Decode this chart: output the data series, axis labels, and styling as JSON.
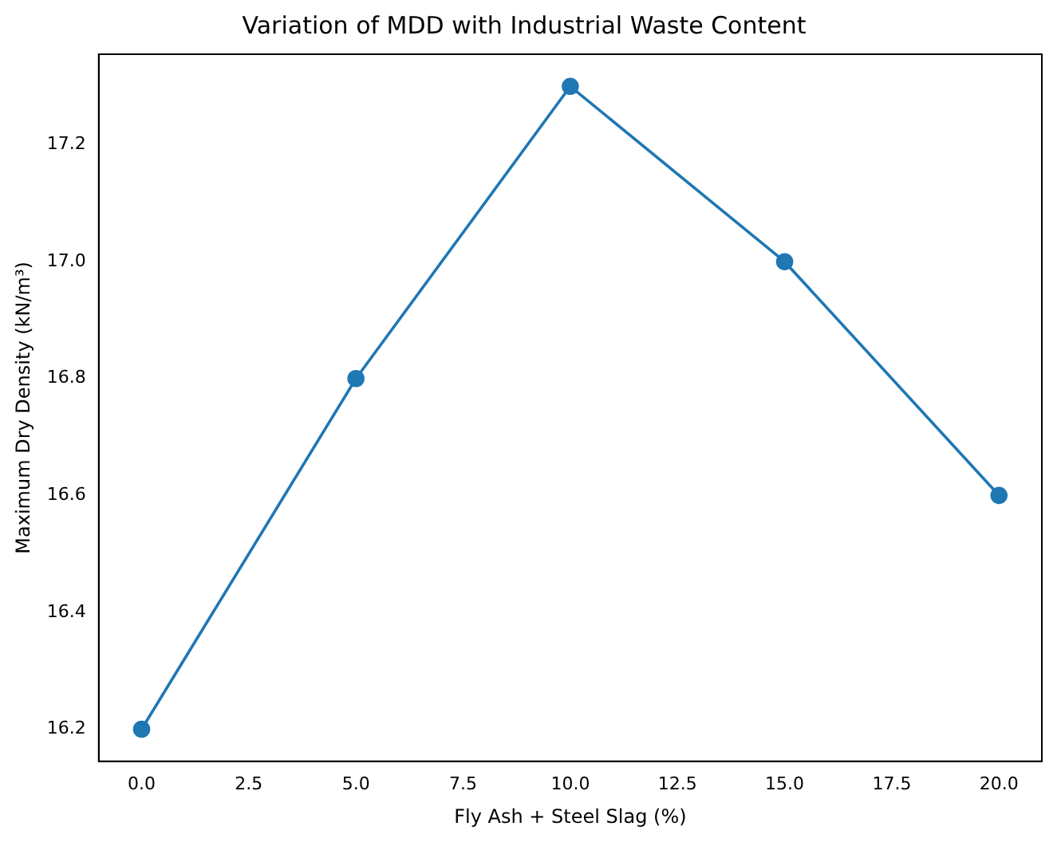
{
  "chart_data": {
    "type": "line",
    "title": "Variation of MDD with Industrial Waste Content",
    "xlabel": "Fly Ash + Steel Slag (%)",
    "ylabel": "Maximum Dry Density (kN/m³)",
    "x": [
      0,
      5,
      10,
      15,
      20
    ],
    "series": [
      {
        "color": "#1f77b4",
        "values": [
          16.2,
          16.8,
          17.3,
          17.0,
          16.6
        ]
      }
    ],
    "xlim": [
      -1,
      21
    ],
    "xticks": [
      {
        "value": 0,
        "label": "0.0"
      },
      {
        "value": 2.5,
        "label": "2.5"
      },
      {
        "value": 5,
        "label": "5.0"
      },
      {
        "value": 7.5,
        "label": "7.5"
      },
      {
        "value": 10,
        "label": "10.0"
      },
      {
        "value": 12.5,
        "label": "12.5"
      },
      {
        "value": 15,
        "label": "15.0"
      },
      {
        "value": 17.5,
        "label": "17.5"
      },
      {
        "value": 20,
        "label": "20.0"
      }
    ],
    "ylim": [
      16.145,
      17.355
    ],
    "yticks": [
      {
        "value": 16.2,
        "label": "16.2"
      },
      {
        "value": 16.4,
        "label": "16.4"
      },
      {
        "value": 16.6,
        "label": "16.6"
      },
      {
        "value": 16.8,
        "label": "16.8"
      },
      {
        "value": 17.0,
        "label": "17.0"
      },
      {
        "value": 17.2,
        "label": "17.2"
      }
    ],
    "marker": "circle",
    "line_style": "solid",
    "grid": false,
    "legend": false
  }
}
